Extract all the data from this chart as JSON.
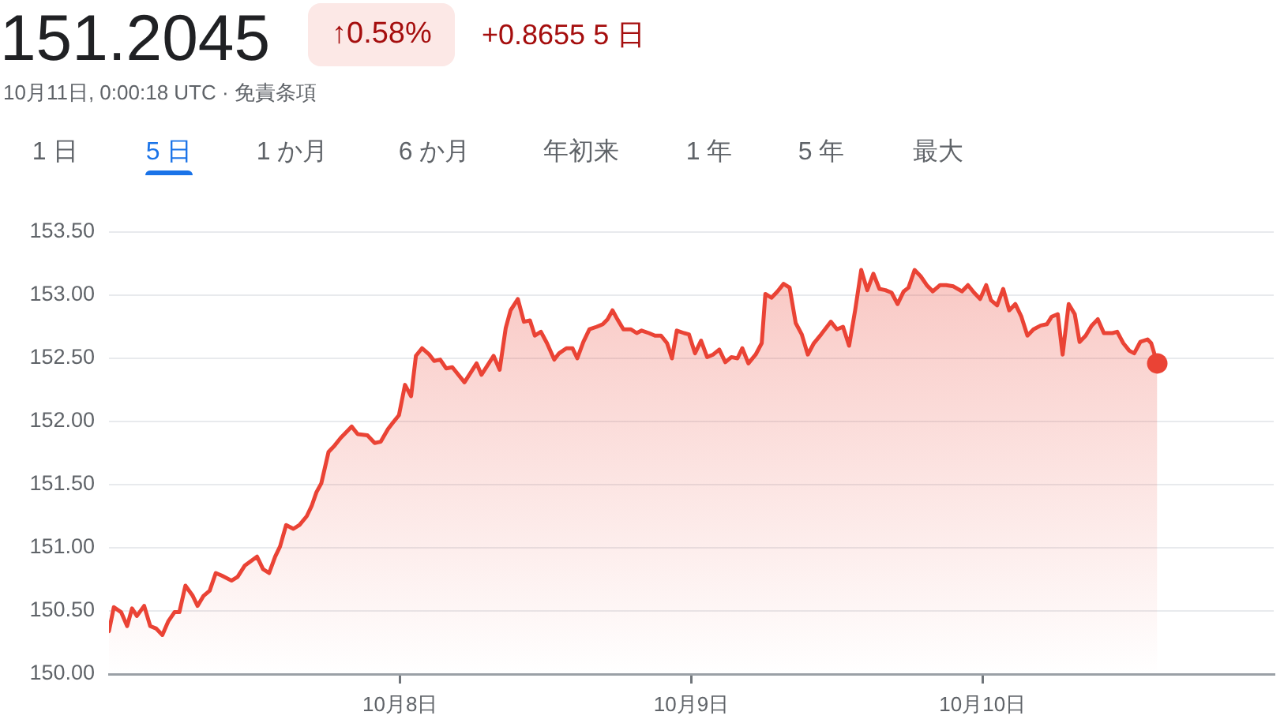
{
  "chart_data": {
    "type": "area",
    "title": "151.2045",
    "subtitle": "10月11日, 0:00:18 UTC · 免責条項",
    "annotations": [
      "↑0.58%",
      "+0.8655 5 日",
      "1 日",
      "5 日",
      "1 か月",
      "6 か月",
      "年初来",
      "1 年",
      "5 年",
      "最大"
    ],
    "series": [
      {
        "color": "#ea4335",
        "x": [
          "--10-07T00:00",
          "--10-07T00:24",
          "--10-07T01:00",
          "--10-07T01:30",
          "--10-07T01:54",
          "--10-07T02:18",
          "--10-07T02:54",
          "--10-07T03:24",
          "--10-07T03:54",
          "--10-07T04:24",
          "--10-07T04:54",
          "--10-07T05:24",
          "--10-07T05:48",
          "--10-07T06:18",
          "--10-07T06:54",
          "--10-07T07:18",
          "--10-07T07:48",
          "--10-07T08:18",
          "--10-07T08:48",
          "--10-07T09:18",
          "--10-07T10:06",
          "--10-07T10:36",
          "--10-07T11:12",
          "--10-07T12:12",
          "--10-07T12:42",
          "--10-07T13:12",
          "--10-07T13:42",
          "--10-07T14:06",
          "--10-07T14:36",
          "--10-07T15:12",
          "--10-07T15:42",
          "--10-07T16:18",
          "--10-07T16:42",
          "--10-07T17:06",
          "--10-07T17:30",
          "--10-07T18:06",
          "--10-07T18:36",
          "--10-07T19:06",
          "--10-07T20:00",
          "--10-07T20:30",
          "--10-07T21:18",
          "--10-07T21:54",
          "--10-07T22:24",
          "--10-07T23:00",
          "--10-07T23:24",
          "--10-07T23:54",
          "--10-08T00:24",
          "--10-08T00:54",
          "--10-08T01:18",
          "--10-08T01:48",
          "--10-08T02:24",
          "--10-08T02:48",
          "--10-08T03:18",
          "--10-08T03:48",
          "--10-08T04:18",
          "--10-08T05:18",
          "--10-08T06:18",
          "--10-08T06:42",
          "--10-08T07:42",
          "--10-08T08:12",
          "--10-08T08:42",
          "--10-08T09:06",
          "--10-08T09:42",
          "--10-08T10:12",
          "--10-08T10:42",
          "--10-08T11:06",
          "--10-08T11:36",
          "--10-08T12:06",
          "--10-08T12:42",
          "--10-08T13:06",
          "--10-08T13:42",
          "--10-08T14:12",
          "--10-08T14:36",
          "--10-08T15:06",
          "--10-08T15:36",
          "--10-08T16:12",
          "--10-08T16:42",
          "--10-08T17:06",
          "--10-08T17:30",
          "--10-08T17:54",
          "--10-08T18:24",
          "--10-08T19:00",
          "--10-08T19:30",
          "--10-08T19:54",
          "--10-08T20:30",
          "--10-08T21:00",
          "--10-08T21:30",
          "--10-08T22:00",
          "--10-08T22:24",
          "--10-08T22:48",
          "--10-08T23:24",
          "--10-08T23:48",
          "--10-09T00:18",
          "--10-09T00:48",
          "--10-09T01:18",
          "--10-09T01:48",
          "--10-09T02:18",
          "--10-09T02:48",
          "--10-09T03:18",
          "--10-09T03:48",
          "--10-09T04:12",
          "--10-09T04:42",
          "--10-09T05:18",
          "--10-09T05:48",
          "--10-09T06:06",
          "--10-09T06:36",
          "--10-09T07:06",
          "--10-09T07:36",
          "--10-09T08:06",
          "--10-09T08:36",
          "--10-09T09:06",
          "--10-09T09:36",
          "--10-09T10:06",
          "--10-09T10:42",
          "--10-09T11:30",
          "--10-09T12:00",
          "--10-09T12:30",
          "--10-09T13:00",
          "--10-09T13:30",
          "--10-09T14:00",
          "--10-09T14:30",
          "--10-09T15:00",
          "--10-09T15:30",
          "--10-09T16:00",
          "--10-09T16:30",
          "--10-09T17:00",
          "--10-09T17:30",
          "--10-09T17:54",
          "--10-09T18:24",
          "--10-09T18:54",
          "--10-09T19:24",
          "--10-09T19:54",
          "--10-09T20:30",
          "--10-09T21:00",
          "--10-09T21:36",
          "--10-09T22:18",
          "--10-09T22:48",
          "--10-09T23:18",
          "--10-09T23:48",
          "--10-10T00:18",
          "--10-10T00:42",
          "--10-10T01:12",
          "--10-10T01:42",
          "--10-10T02:12",
          "--10-10T02:42",
          "--10-10T03:12",
          "--10-10T03:42",
          "--10-10T04:12",
          "--10-10T04:48",
          "--10-10T05:18",
          "--10-10T05:42",
          "--10-10T06:12",
          "--10-10T06:36",
          "--10-10T07:06",
          "--10-10T07:36",
          "--10-10T08:00",
          "--10-10T08:30",
          "--10-10T09:00",
          "--10-10T09:30",
          "--10-10T10:00",
          "--10-10T10:42",
          "--10-10T11:06",
          "--10-10T11:36",
          "--10-10T12:06",
          "--10-10T12:30",
          "--10-10T13:00",
          "--10-10T13:36",
          "--10-10T13:54",
          "--10-10T14:24"
        ],
        "values": [
          150.34,
          150.53,
          150.49,
          150.38,
          150.52,
          150.46,
          150.54,
          150.38,
          150.36,
          150.31,
          150.42,
          150.49,
          150.49,
          150.7,
          150.62,
          150.54,
          150.62,
          150.66,
          150.8,
          150.78,
          150.74,
          150.77,
          150.86,
          150.93,
          150.83,
          150.8,
          150.93,
          151.01,
          151.18,
          151.15,
          151.18,
          151.25,
          151.33,
          151.44,
          151.51,
          151.76,
          151.81,
          151.87,
          151.96,
          151.9,
          151.89,
          151.83,
          151.84,
          151.94,
          151.99,
          152.05,
          152.29,
          152.2,
          152.52,
          152.58,
          152.53,
          152.48,
          152.49,
          152.42,
          152.43,
          152.31,
          152.46,
          152.37,
          152.52,
          152.41,
          152.74,
          152.88,
          152.97,
          152.79,
          152.8,
          152.68,
          152.71,
          152.62,
          152.49,
          152.54,
          152.58,
          152.58,
          152.5,
          152.63,
          152.73,
          152.75,
          152.77,
          152.81,
          152.88,
          152.81,
          152.73,
          152.73,
          152.7,
          152.72,
          152.7,
          152.68,
          152.68,
          152.62,
          152.5,
          152.72,
          152.7,
          152.69,
          152.54,
          152.64,
          152.51,
          152.53,
          152.57,
          152.47,
          152.51,
          152.5,
          152.58,
          152.46,
          152.53,
          152.62,
          153.01,
          152.98,
          153.03,
          153.09,
          153.06,
          152.78,
          152.69,
          152.53,
          152.62,
          152.69,
          152.79,
          152.73,
          152.75,
          152.6,
          152.88,
          153.2,
          153.04,
          153.17,
          153.05,
          153.04,
          153.02,
          152.93,
          153.03,
          153.06,
          153.2,
          153.15,
          153.08,
          153.03,
          153.08,
          153.08,
          153.07,
          153.03,
          153.08,
          153.02,
          152.97,
          153.08,
          152.96,
          152.92,
          153.05,
          152.88,
          152.93,
          152.83,
          152.68,
          152.73,
          152.76,
          152.77,
          152.83,
          152.85,
          152.53,
          152.93,
          152.85,
          152.63,
          152.68,
          152.76,
          152.81,
          152.7,
          152.7,
          152.71,
          152.62,
          152.56,
          152.54,
          152.63,
          152.65,
          152.62,
          152.46
        ]
      },
      {
        "type": "scatter",
        "color": "#ea4335",
        "marker": "circle",
        "x": [
          "--10-10T14:24"
        ],
        "values": [
          152.46
        ]
      }
    ],
    "xlim": [
      "--10-07T00:00",
      "--10-11T00:00"
    ],
    "xticks": [
      {
        "value": "--10-08",
        "label": "10月8日"
      },
      {
        "value": "--10-09",
        "label": "10月9日"
      },
      {
        "value": "--10-10",
        "label": "10月10日"
      }
    ],
    "ylim": [
      150,
      153.5
    ],
    "yticks": [
      {
        "value": 150,
        "label": "150.00"
      },
      {
        "value": 150.5,
        "label": "150.50"
      },
      {
        "value": 151,
        "label": "151.00"
      },
      {
        "value": 151.5,
        "label": "151.50"
      },
      {
        "value": 152,
        "label": "152.00"
      },
      {
        "value": 152.5,
        "label": "152.50"
      },
      {
        "value": 153,
        "label": "153.00"
      },
      {
        "value": 153.5,
        "label": "153.50"
      }
    ],
    "grid": "y"
  }
}
